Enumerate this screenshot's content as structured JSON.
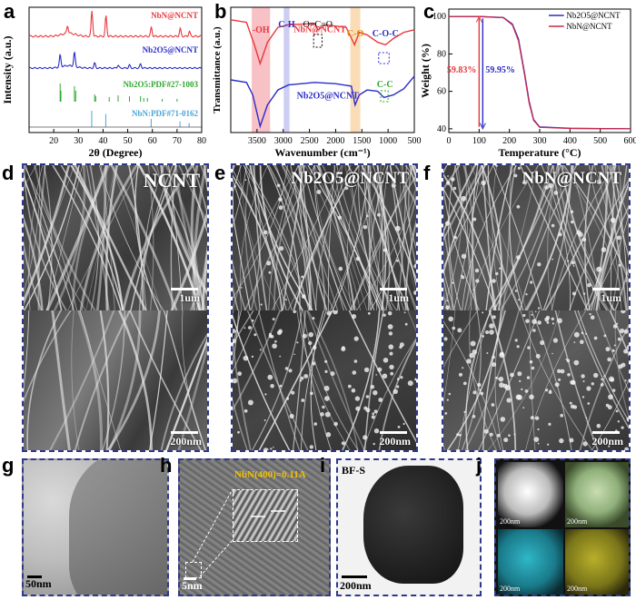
{
  "panels": {
    "a": {
      "label": "a"
    },
    "b": {
      "label": "b"
    },
    "c": {
      "label": "c"
    },
    "d": {
      "label": "d",
      "title": "NCNT",
      "scale_top": "1um",
      "scale_bottom": "200nm"
    },
    "e": {
      "label": "e",
      "title": "Nb2O5@NCNT",
      "scale_top": "1um",
      "scale_bottom": "200nm"
    },
    "f": {
      "label": "f",
      "title": "NbN@NCNT",
      "scale_top": "1um",
      "scale_bottom": "200nm"
    },
    "g": {
      "label": "g",
      "scale": "50nm"
    },
    "h": {
      "label": "h",
      "scale": "5nm",
      "annotation": "NbN(400)=0.11A"
    },
    "i": {
      "label": "i",
      "tag": "BF-S",
      "scale": "200nm"
    },
    "j": {
      "label": "j",
      "scales": [
        "200nm",
        "200nm",
        "200nm",
        "200nm"
      ]
    }
  },
  "colors": {
    "red": "#e8383d",
    "blue": "#2b2bc8",
    "green": "#2ea82e",
    "lightblue": "#4aa6d8",
    "frame": "#2d3a8c"
  },
  "chart_data": [
    {
      "id": "a",
      "type": "line",
      "xlabel": "2θ (Degree)",
      "ylabel": "Intensity (a.u.)",
      "xticks": [
        "20",
        "30",
        "40",
        "50",
        "60",
        "70",
        "80"
      ],
      "xlim": [
        10,
        80
      ],
      "series": [
        {
          "name": "NbN@NCNT",
          "color": "#e8383d",
          "peaks": [
            {
              "x": 25.6,
              "h": 0.3
            },
            {
              "x": 35.5,
              "h": 1.0
            },
            {
              "x": 41.2,
              "h": 0.8
            },
            {
              "x": 59.6,
              "h": 0.35
            },
            {
              "x": 71.3,
              "h": 0.3
            },
            {
              "x": 75.0,
              "h": 0.2
            }
          ]
        },
        {
          "name": "Nb2O5@NCNT",
          "color": "#2b2bc8",
          "peaks": [
            {
              "x": 22.6,
              "h": 0.6
            },
            {
              "x": 28.4,
              "h": 0.7
            },
            {
              "x": 36.6,
              "h": 0.25
            },
            {
              "x": 46.1,
              "h": 0.15
            },
            {
              "x": 50.7,
              "h": 0.15
            },
            {
              "x": 55.2,
              "h": 0.2
            }
          ]
        },
        {
          "name": "Nb2O5:PDF#27-1003",
          "color": "#2ea82e",
          "sticks": [
            {
              "x": 22.6,
              "h": 1.0
            },
            {
              "x": 22.9,
              "h": 0.6
            },
            {
              "x": 28.4,
              "h": 0.85
            },
            {
              "x": 28.9,
              "h": 0.6
            },
            {
              "x": 36.6,
              "h": 0.4
            },
            {
              "x": 37.0,
              "h": 0.3
            },
            {
              "x": 42.5,
              "h": 0.25
            },
            {
              "x": 46.1,
              "h": 0.35
            },
            {
              "x": 50.7,
              "h": 0.3
            },
            {
              "x": 55.2,
              "h": 0.3
            },
            {
              "x": 56.5,
              "h": 0.2
            },
            {
              "x": 58.0,
              "h": 0.2
            },
            {
              "x": 64.0,
              "h": 0.15
            },
            {
              "x": 70.0,
              "h": 0.15
            }
          ]
        },
        {
          "name": "NbN:PDF#71-0162",
          "color": "#4aa6d8",
          "sticks": [
            {
              "x": 35.4,
              "h": 1.0
            },
            {
              "x": 41.1,
              "h": 0.8
            },
            {
              "x": 59.5,
              "h": 0.5
            },
            {
              "x": 71.2,
              "h": 0.35
            },
            {
              "x": 74.9,
              "h": 0.25
            }
          ]
        }
      ]
    },
    {
      "id": "b",
      "type": "line",
      "xlabel": "Wavenumber (cm⁻¹)",
      "ylabel": "Transmittance (a.u.)",
      "xticks": [
        "3500",
        "3000",
        "2500",
        "2000",
        "1500",
        "1000",
        "500"
      ],
      "xlim": [
        4000,
        500
      ],
      "bands": [
        {
          "label": "-OH",
          "from": 3600,
          "to": 3250,
          "color": "#f3a7ad"
        },
        {
          "label": "C-H",
          "from": 2990,
          "to": 2880,
          "color": "#b6b9f0"
        },
        {
          "label": "C-O",
          "from": 1720,
          "to": 1530,
          "color": "#f8cf98"
        }
      ],
      "annotations": [
        "O=C=O",
        "C-O-C",
        "C-C"
      ],
      "series": [
        {
          "name": "NbN@NCNT",
          "color": "#e8383d",
          "points": [
            [
              4000,
              0.9
            ],
            [
              3700,
              0.88
            ],
            [
              3550,
              0.7
            ],
            [
              3440,
              0.55
            ],
            [
              3300,
              0.72
            ],
            [
              3100,
              0.84
            ],
            [
              2900,
              0.86
            ],
            [
              2400,
              0.87
            ],
            [
              2340,
              0.82
            ],
            [
              2200,
              0.86
            ],
            [
              1800,
              0.84
            ],
            [
              1640,
              0.7
            ],
            [
              1550,
              0.8
            ],
            [
              1400,
              0.78
            ],
            [
              1200,
              0.72
            ],
            [
              1050,
              0.7
            ],
            [
              900,
              0.75
            ],
            [
              700,
              0.8
            ],
            [
              500,
              0.82
            ]
          ]
        },
        {
          "name": "Nb2O5@NCNT",
          "color": "#2b2bc8",
          "points": [
            [
              4000,
              0.42
            ],
            [
              3700,
              0.4
            ],
            [
              3580,
              0.3
            ],
            [
              3440,
              0.05
            ],
            [
              3300,
              0.22
            ],
            [
              3100,
              0.34
            ],
            [
              2900,
              0.38
            ],
            [
              2400,
              0.4
            ],
            [
              2000,
              0.39
            ],
            [
              1700,
              0.37
            ],
            [
              1630,
              0.22
            ],
            [
              1550,
              0.3
            ],
            [
              1400,
              0.34
            ],
            [
              1200,
              0.33
            ],
            [
              1080,
              0.28
            ],
            [
              900,
              0.3
            ],
            [
              700,
              0.35
            ],
            [
              500,
              0.45
            ]
          ]
        }
      ]
    },
    {
      "id": "c",
      "type": "line",
      "xlabel": "Temperature (°C)",
      "ylabel": "Weight (%)",
      "xticks": [
        "0",
        "100",
        "200",
        "300",
        "400",
        "500",
        "600"
      ],
      "yticks": [
        "40",
        "60",
        "80",
        "100"
      ],
      "xlim": [
        0,
        600
      ],
      "ylim": [
        38,
        104
      ],
      "annotations": [
        "59.83%",
        "59.95%"
      ],
      "series": [
        {
          "name": "Nb2O5@NCNT",
          "color": "#2b2bc8",
          "points": [
            [
              0,
              100
            ],
            [
              100,
              100
            ],
            [
              180,
              99.5
            ],
            [
              210,
              96
            ],
            [
              230,
              88
            ],
            [
              250,
              70
            ],
            [
              265,
              55
            ],
            [
              280,
              45
            ],
            [
              300,
              41
            ],
            [
              400,
              40.3
            ],
            [
              600,
              40
            ]
          ]
        },
        {
          "name": "NbN@NCNT",
          "color": "#c8294a",
          "points": [
            [
              0,
              100
            ],
            [
              100,
              100
            ],
            [
              180,
              99.4
            ],
            [
              210,
              95.5
            ],
            [
              230,
              87
            ],
            [
              250,
              69
            ],
            [
              265,
              54
            ],
            [
              280,
              44.5
            ],
            [
              300,
              40.8
            ],
            [
              400,
              40.2
            ],
            [
              600,
              40
            ]
          ]
        }
      ]
    }
  ]
}
